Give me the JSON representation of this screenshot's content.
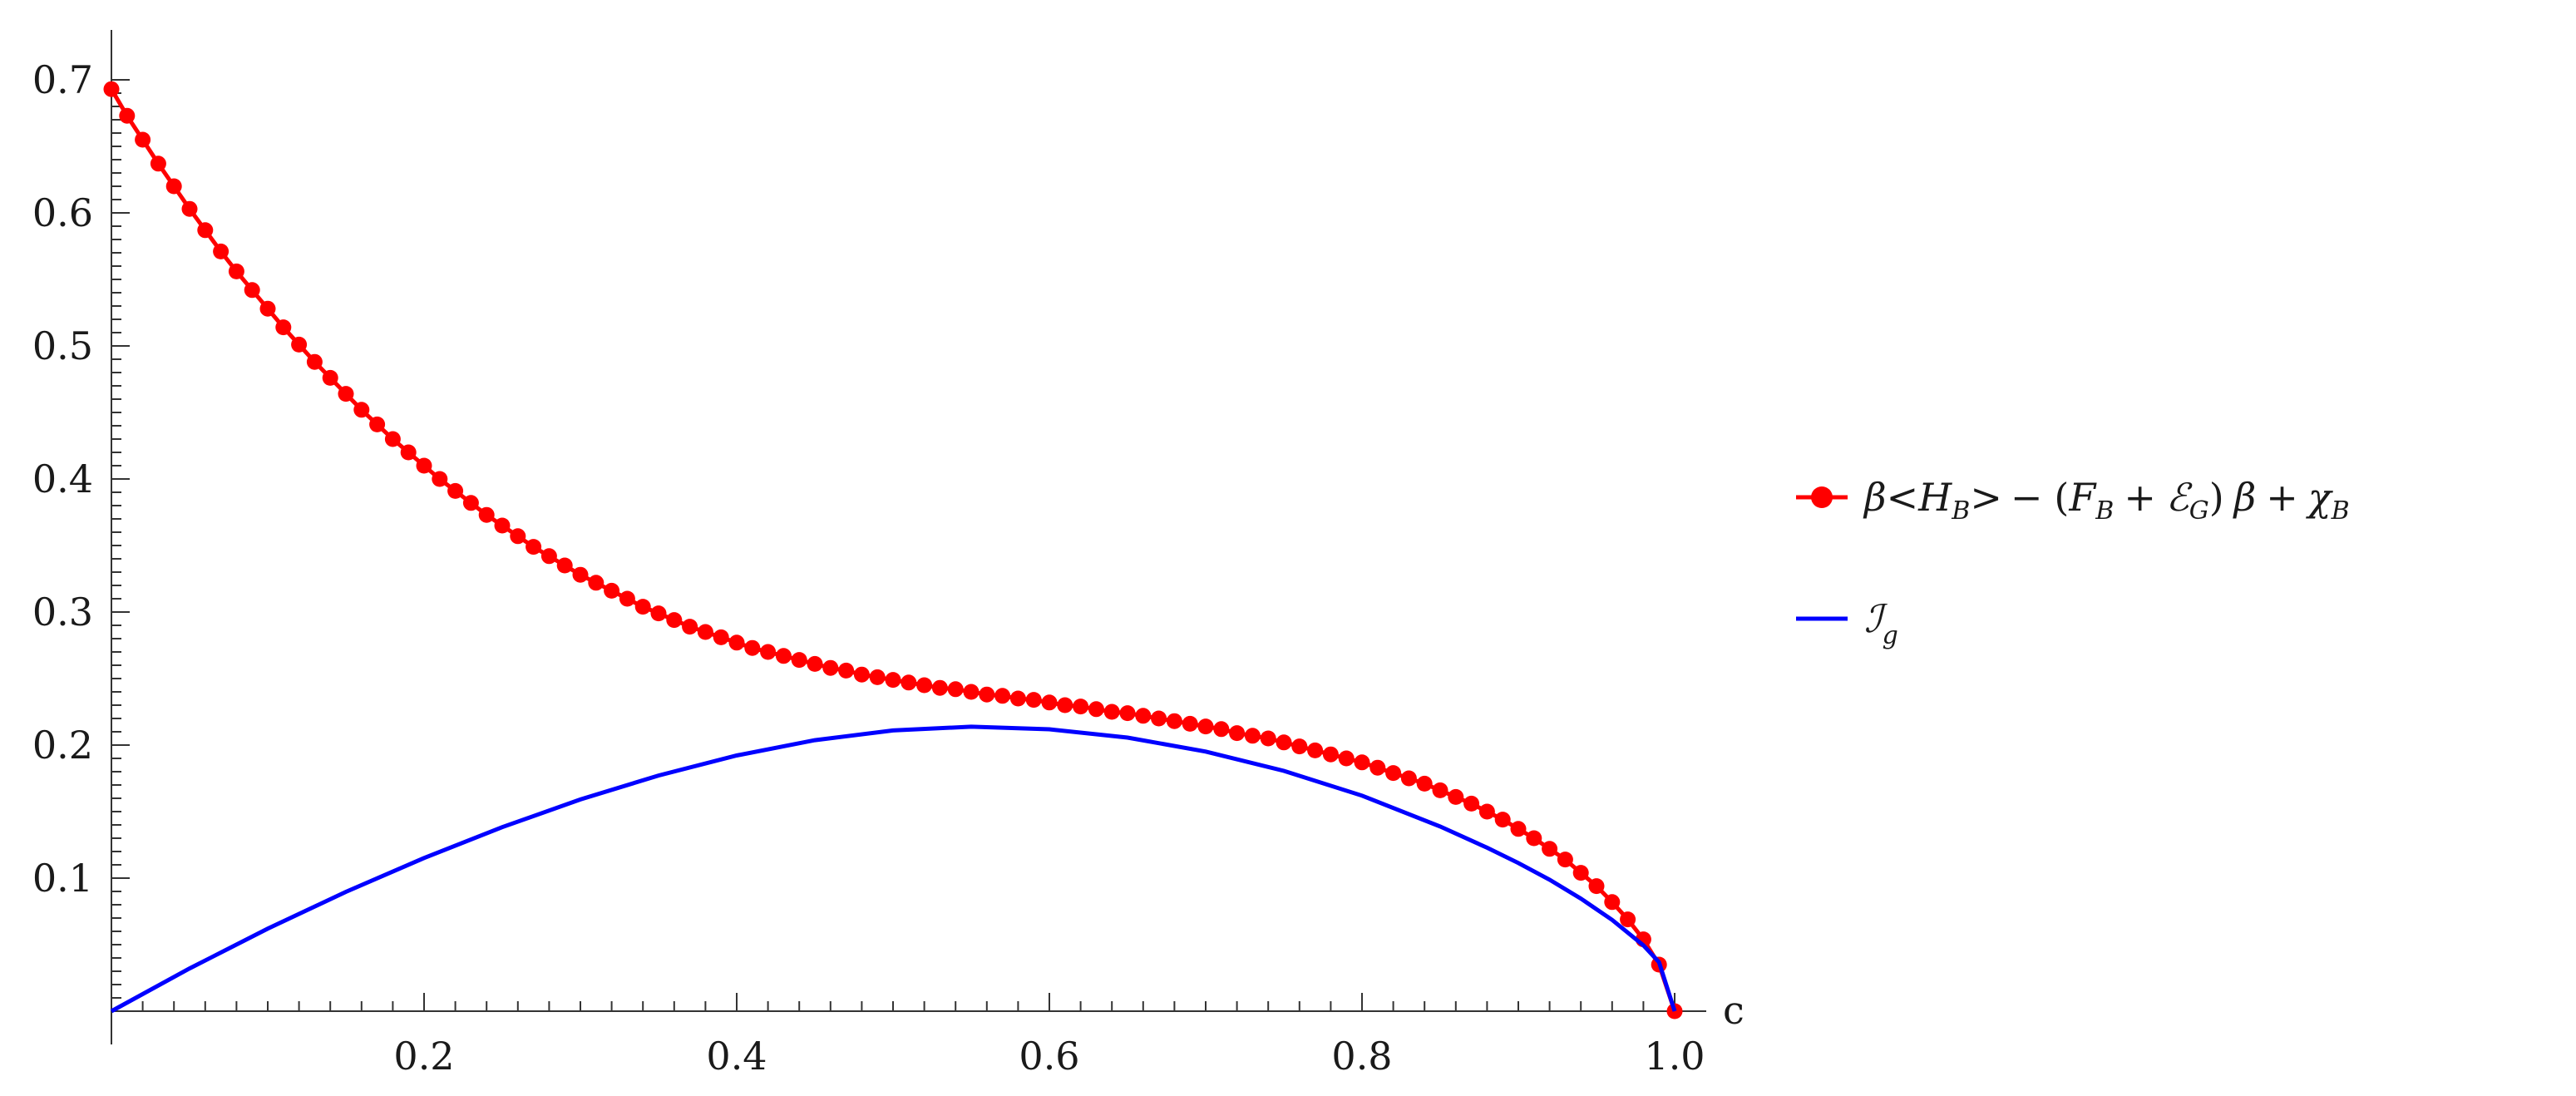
{
  "chart_data": {
    "type": "line",
    "xlabel": "c",
    "ylabel": "",
    "xlim": [
      0,
      1.0
    ],
    "ylim": [
      0,
      0.7
    ],
    "x_ticks": [
      0.2,
      0.4,
      0.6,
      0.8,
      1.0
    ],
    "x_tick_labels": [
      "0.2",
      "0.4",
      "0.6",
      "0.8",
      "1.0"
    ],
    "y_ticks": [
      0.1,
      0.2,
      0.3,
      0.4,
      0.5,
      0.6,
      0.7
    ],
    "y_tick_labels": [
      "0.1",
      "0.2",
      "0.3",
      "0.4",
      "0.5",
      "0.6",
      "0.7"
    ],
    "legend_position": "right",
    "grid": false,
    "series": [
      {
        "name": "β<H_B> − (F_B + ℰ_G) β + χ_B",
        "legend_parts": {
          "beta": "β",
          "lt": "<",
          "H": "H",
          "H_sub": "B",
          "gt": ">",
          "minus": "−",
          "lparen": "(",
          "F": "F",
          "F_sub": "B",
          "plus1": "+",
          "E": "ℰ",
          "E_sub": "G",
          "rparen": ")",
          "beta2": "β",
          "plus2": "+",
          "chi": "χ",
          "chi_sub": "B"
        },
        "color": "#ff0000",
        "marker": "circle",
        "x": [
          0.0,
          0.01,
          0.02,
          0.03,
          0.04,
          0.05,
          0.06,
          0.07,
          0.08,
          0.09,
          0.1,
          0.11,
          0.12,
          0.13,
          0.14,
          0.15,
          0.16,
          0.17,
          0.18,
          0.19,
          0.2,
          0.21,
          0.22,
          0.23,
          0.24,
          0.25,
          0.26,
          0.27,
          0.28,
          0.29,
          0.3,
          0.31,
          0.32,
          0.33,
          0.34,
          0.35,
          0.36,
          0.37,
          0.38,
          0.39,
          0.4,
          0.41,
          0.42,
          0.43,
          0.44,
          0.45,
          0.46,
          0.47,
          0.48,
          0.49,
          0.5,
          0.51,
          0.52,
          0.53,
          0.54,
          0.55,
          0.56,
          0.57,
          0.58,
          0.59,
          0.6,
          0.61,
          0.62,
          0.63,
          0.64,
          0.65,
          0.66,
          0.67,
          0.68,
          0.69,
          0.7,
          0.71,
          0.72,
          0.73,
          0.74,
          0.75,
          0.76,
          0.77,
          0.78,
          0.79,
          0.8,
          0.81,
          0.82,
          0.83,
          0.84,
          0.85,
          0.86,
          0.87,
          0.88,
          0.89,
          0.9,
          0.91,
          0.92,
          0.93,
          0.94,
          0.95,
          0.96,
          0.97,
          0.98,
          0.99,
          1.0
        ],
        "y": [
          0.693,
          0.673,
          0.655,
          0.637,
          0.62,
          0.603,
          0.587,
          0.571,
          0.556,
          0.542,
          0.528,
          0.514,
          0.501,
          0.488,
          0.476,
          0.464,
          0.452,
          0.441,
          0.43,
          0.42,
          0.41,
          0.4,
          0.391,
          0.382,
          0.373,
          0.365,
          0.357,
          0.349,
          0.342,
          0.335,
          0.328,
          0.322,
          0.316,
          0.31,
          0.304,
          0.299,
          0.294,
          0.289,
          0.285,
          0.281,
          0.277,
          0.273,
          0.27,
          0.267,
          0.264,
          0.261,
          0.258,
          0.256,
          0.253,
          0.251,
          0.249,
          0.247,
          0.245,
          0.243,
          0.242,
          0.24,
          0.238,
          0.237,
          0.235,
          0.234,
          0.232,
          0.23,
          0.229,
          0.227,
          0.225,
          0.224,
          0.222,
          0.22,
          0.218,
          0.216,
          0.214,
          0.212,
          0.209,
          0.207,
          0.205,
          0.202,
          0.199,
          0.196,
          0.193,
          0.19,
          0.187,
          0.183,
          0.179,
          0.175,
          0.171,
          0.166,
          0.161,
          0.156,
          0.15,
          0.144,
          0.137,
          0.13,
          0.122,
          0.114,
          0.104,
          0.094,
          0.082,
          0.069,
          0.054,
          0.035,
          0.0
        ]
      },
      {
        "name": "ℐ_g",
        "legend_parts": {
          "I": "ℐ",
          "I_sub": "g"
        },
        "color": "#0000ff",
        "marker": "none",
        "x": [
          0.0,
          0.05,
          0.1,
          0.15,
          0.2,
          0.25,
          0.3,
          0.35,
          0.4,
          0.45,
          0.5,
          0.55,
          0.6,
          0.65,
          0.7,
          0.75,
          0.8,
          0.85,
          0.88,
          0.9,
          0.92,
          0.94,
          0.96,
          0.98,
          0.99,
          1.0
        ],
        "y": [
          0.0,
          0.0321,
          0.062,
          0.0897,
          0.1151,
          0.1383,
          0.1591,
          0.1771,
          0.1922,
          0.2037,
          0.211,
          0.2138,
          0.2119,
          0.2056,
          0.1951,
          0.1806,
          0.162,
          0.1388,
          0.1229,
          0.1114,
          0.0988,
          0.0846,
          0.0686,
          0.0495,
          0.0369,
          0.0
        ]
      }
    ]
  }
}
